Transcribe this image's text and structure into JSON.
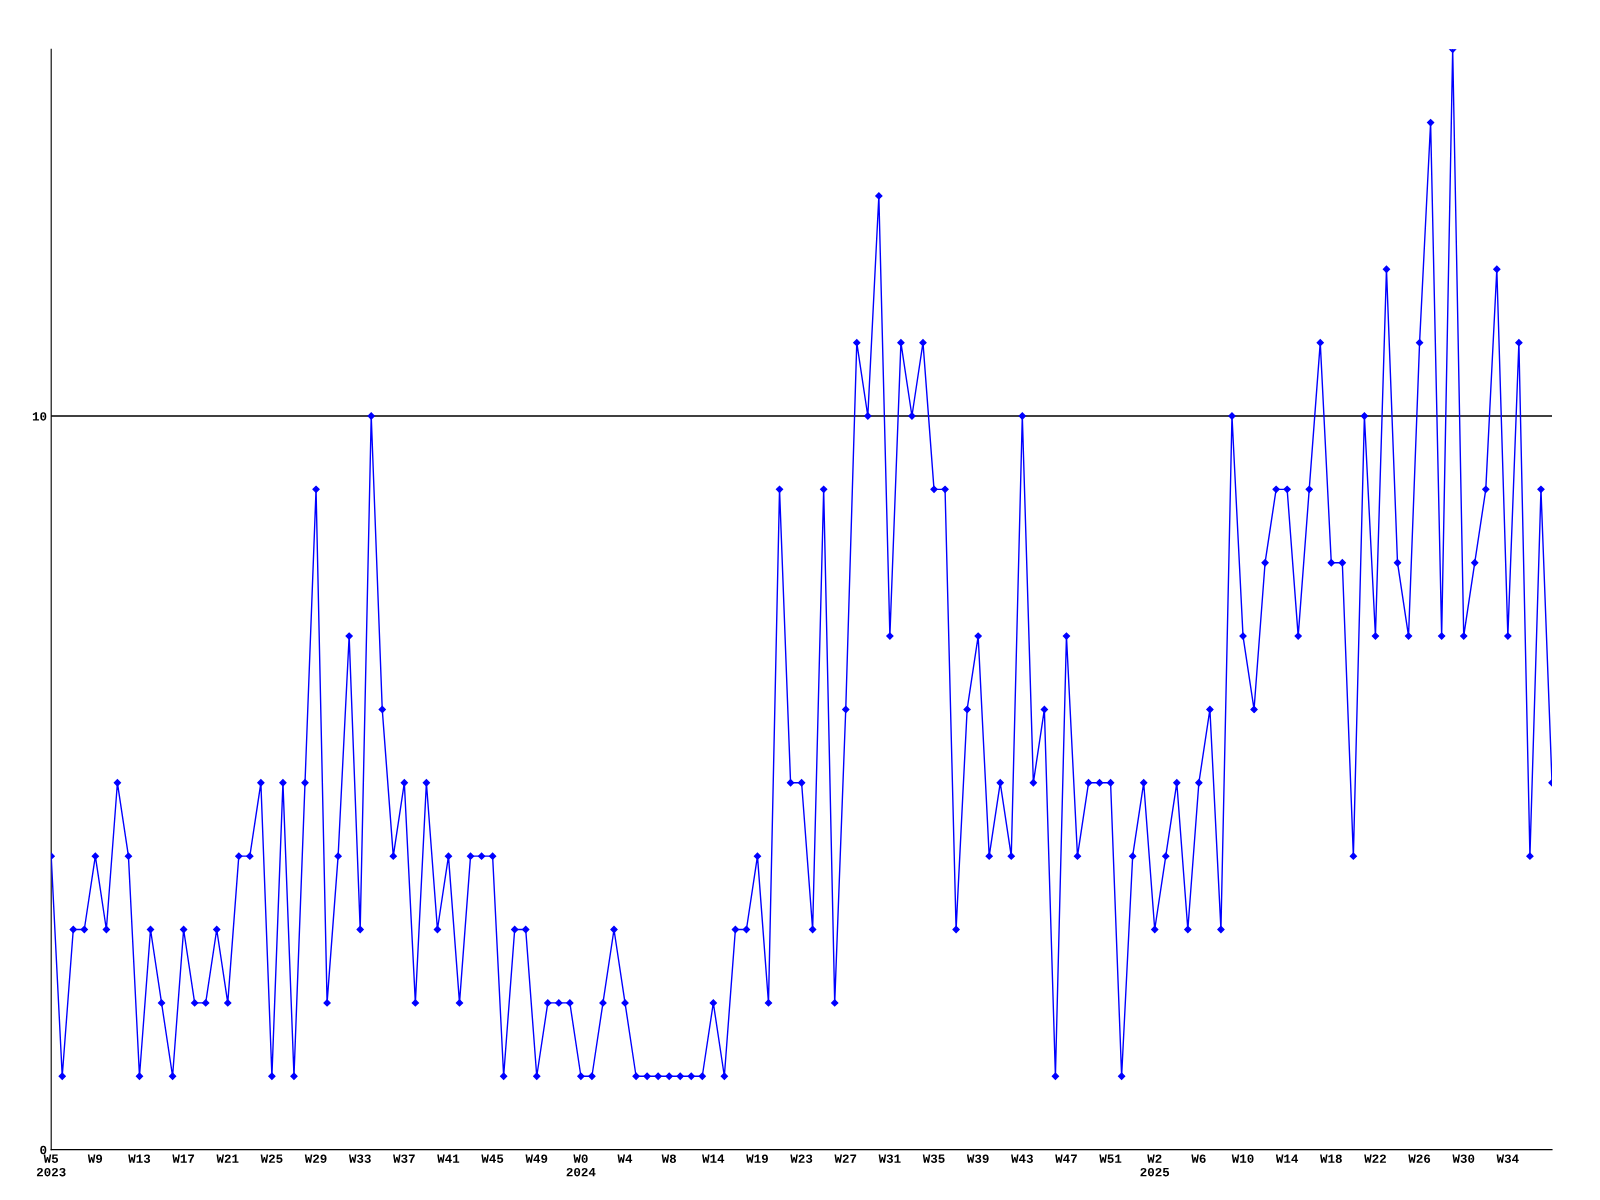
{
  "chart_data": {
    "type": "line",
    "categories": [
      "W5\n2023",
      null,
      null,
      null,
      "W9",
      null,
      null,
      null,
      "W13",
      null,
      null,
      null,
      "W17",
      null,
      null,
      null,
      "W21",
      null,
      null,
      null,
      "W25",
      null,
      null,
      null,
      "W29",
      null,
      null,
      null,
      "W33",
      null,
      null,
      null,
      "W37",
      null,
      null,
      null,
      "W41",
      null,
      null,
      null,
      "W45",
      null,
      null,
      null,
      "W49",
      null,
      null,
      null,
      "W0\n2024",
      null,
      null,
      null,
      "W4",
      null,
      null,
      null,
      "W8",
      null,
      null,
      null,
      "W14",
      null,
      null,
      null,
      "W19",
      null,
      null,
      null,
      "W23",
      null,
      null,
      null,
      "W27",
      null,
      null,
      null,
      "W31",
      null,
      null,
      null,
      "W35",
      null,
      null,
      null,
      "W39",
      null,
      null,
      null,
      "W43",
      null,
      null,
      null,
      "W47",
      null,
      null,
      null,
      "W51",
      null,
      null,
      null,
      "W2\n2025",
      null,
      null,
      null,
      "W6",
      null,
      null,
      null,
      "W10",
      null,
      null,
      null,
      "W14",
      null,
      null,
      null,
      "W18",
      null,
      null,
      null,
      "W22",
      null,
      null,
      null,
      "W26",
      null,
      null,
      null,
      "W30",
      null,
      null,
      null,
      "W34",
      null,
      null,
      null,
      null
    ],
    "series": [
      {
        "color": "#0000ff",
        "values": [
          4,
          1,
          3,
          3,
          4,
          3,
          5,
          4,
          1,
          3,
          2,
          1,
          3,
          2,
          2,
          3,
          2,
          4,
          4,
          5,
          1,
          5,
          1,
          5,
          9,
          2,
          4,
          7,
          3,
          10,
          6,
          4,
          5,
          2,
          5,
          3,
          4,
          2,
          4,
          4,
          4,
          1,
          3,
          3,
          1,
          2,
          2,
          2,
          1,
          1,
          2,
          3,
          2,
          1,
          1,
          1,
          1,
          1,
          1,
          1,
          2,
          1,
          3,
          3,
          4,
          2,
          9,
          5,
          5,
          3,
          9,
          2,
          6,
          11,
          10,
          13,
          7,
          11,
          10,
          11,
          9,
          9,
          3,
          6,
          7,
          4,
          5,
          4,
          10,
          5,
          6,
          1,
          7,
          4,
          5,
          5,
          5,
          1,
          4,
          5,
          3,
          4,
          5,
          3,
          5,
          6,
          3,
          10,
          7,
          6,
          8,
          9,
          9,
          7,
          9,
          11,
          8,
          8,
          4,
          10,
          7,
          12,
          8,
          7,
          11,
          14,
          7,
          15,
          7,
          8,
          9,
          12,
          7,
          11,
          4,
          9,
          5
        ]
      }
    ],
    "ylim": [
      0,
      15
    ],
    "yticks": [
      0,
      10
    ],
    "grid": "y",
    "marker": "diamond",
    "line_style": "solid"
  }
}
